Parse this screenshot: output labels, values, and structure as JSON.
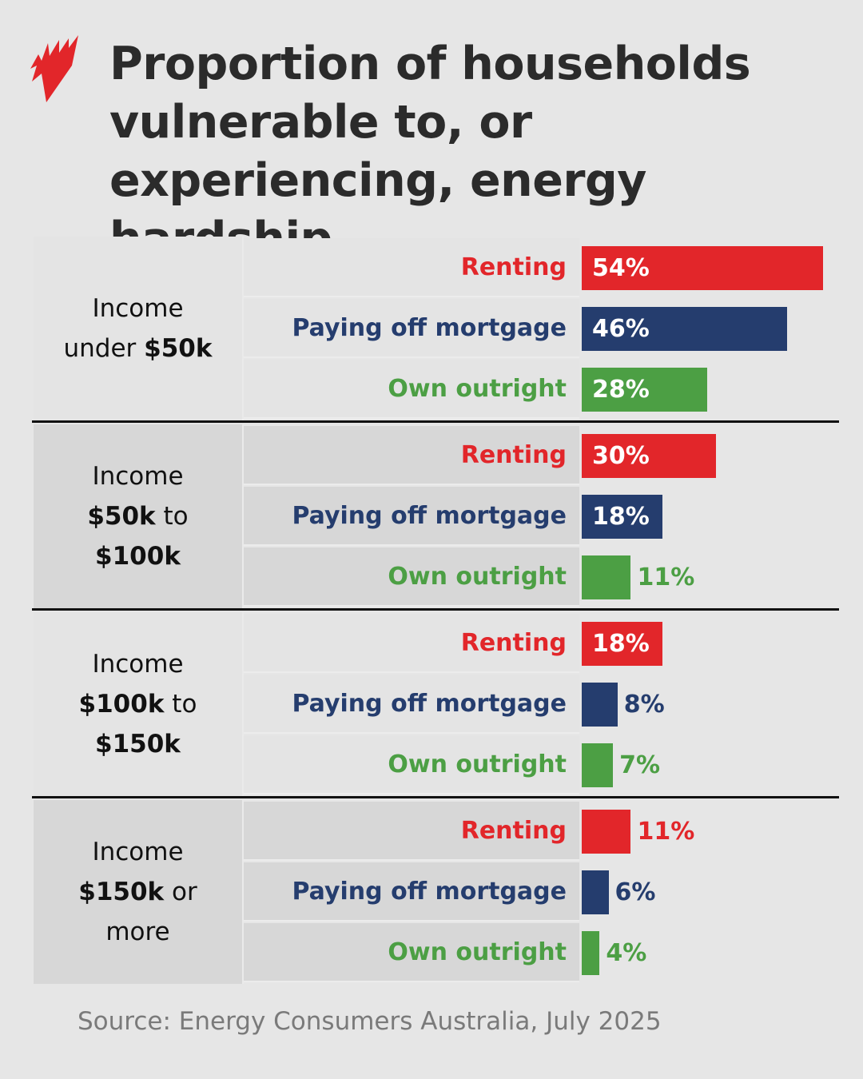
{
  "title": "Proportion of households vulnerable to, or experiencing, energy hardship",
  "source": "Source: Energy Consumers Australia, July 2025",
  "logo": "SBS",
  "colors": {
    "Renting": "#e2262a",
    "Paying off mortgage": "#253d6e",
    "Own outright": "#4c9f44"
  },
  "chart_data": {
    "type": "bar",
    "orientation": "horizontal",
    "unit": "%",
    "title": "Proportion of households vulnerable to, or experiencing, energy hardship",
    "categories": [
      "Renting",
      "Paying off mortgage",
      "Own outright"
    ],
    "groups": [
      {
        "label": [
          {
            "t": "Income",
            "b": false
          },
          {
            "t": "\n",
            "b": false
          },
          {
            "t": "under ",
            "b": false
          },
          {
            "t": "$50k",
            "b": true
          }
        ],
        "values": [
          54,
          46,
          28
        ]
      },
      {
        "label": [
          {
            "t": "Income",
            "b": false
          },
          {
            "t": "\n",
            "b": false
          },
          {
            "t": "$50k",
            "b": true
          },
          {
            "t": " to",
            "b": false
          },
          {
            "t": "\n",
            "b": false
          },
          {
            "t": "$100k",
            "b": true
          }
        ],
        "values": [
          30,
          18,
          11
        ]
      },
      {
        "label": [
          {
            "t": "Income",
            "b": false
          },
          {
            "t": "\n",
            "b": false
          },
          {
            "t": "$100k",
            "b": true
          },
          {
            "t": " to",
            "b": false
          },
          {
            "t": "\n",
            "b": false
          },
          {
            "t": "$150k",
            "b": true
          }
        ],
        "values": [
          18,
          8,
          7
        ]
      },
      {
        "label": [
          {
            "t": "Income",
            "b": false
          },
          {
            "t": "\n",
            "b": false
          },
          {
            "t": "$150k",
            "b": true
          },
          {
            "t": " or",
            "b": false
          },
          {
            "t": "\n",
            "b": false
          },
          {
            "t": "more",
            "b": false
          }
        ],
        "values": [
          11,
          6,
          4
        ]
      }
    ],
    "value_labels": [
      [
        "54%",
        "46%",
        "28%"
      ],
      [
        "30%",
        "18%",
        "11%"
      ],
      [
        "18%",
        "8%",
        "7%"
      ],
      [
        "11%",
        "6%",
        "4%"
      ]
    ]
  }
}
